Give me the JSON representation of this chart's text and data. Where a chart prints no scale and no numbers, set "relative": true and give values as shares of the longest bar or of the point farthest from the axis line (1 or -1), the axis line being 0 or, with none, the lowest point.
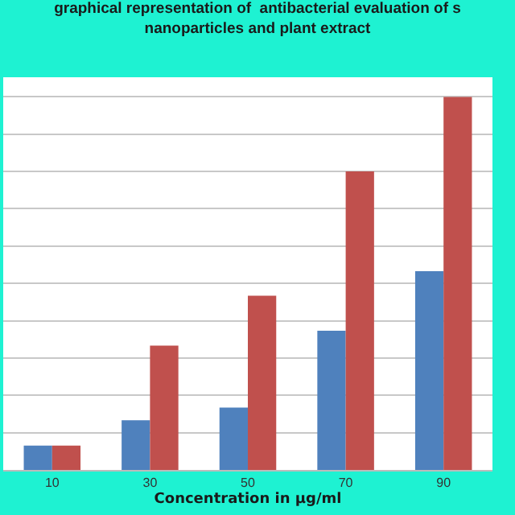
{
  "chart_data": {
    "type": "bar",
    "title": "graphical representation of  antibacterial evaluation of s\nnanoparticles and plant extract",
    "xlabel": "Concentration in µg/ml",
    "categories": [
      "10",
      "30",
      "50",
      "70",
      "90"
    ],
    "relative": true,
    "grid": "y",
    "series": [
      {
        "color": "#4f81bd",
        "values": [
          0.065,
          0.133,
          0.167,
          0.373,
          0.533
        ]
      },
      {
        "color": "#c0504d",
        "values": [
          0.065,
          0.333,
          0.467,
          0.8,
          1
        ]
      }
    ]
  }
}
